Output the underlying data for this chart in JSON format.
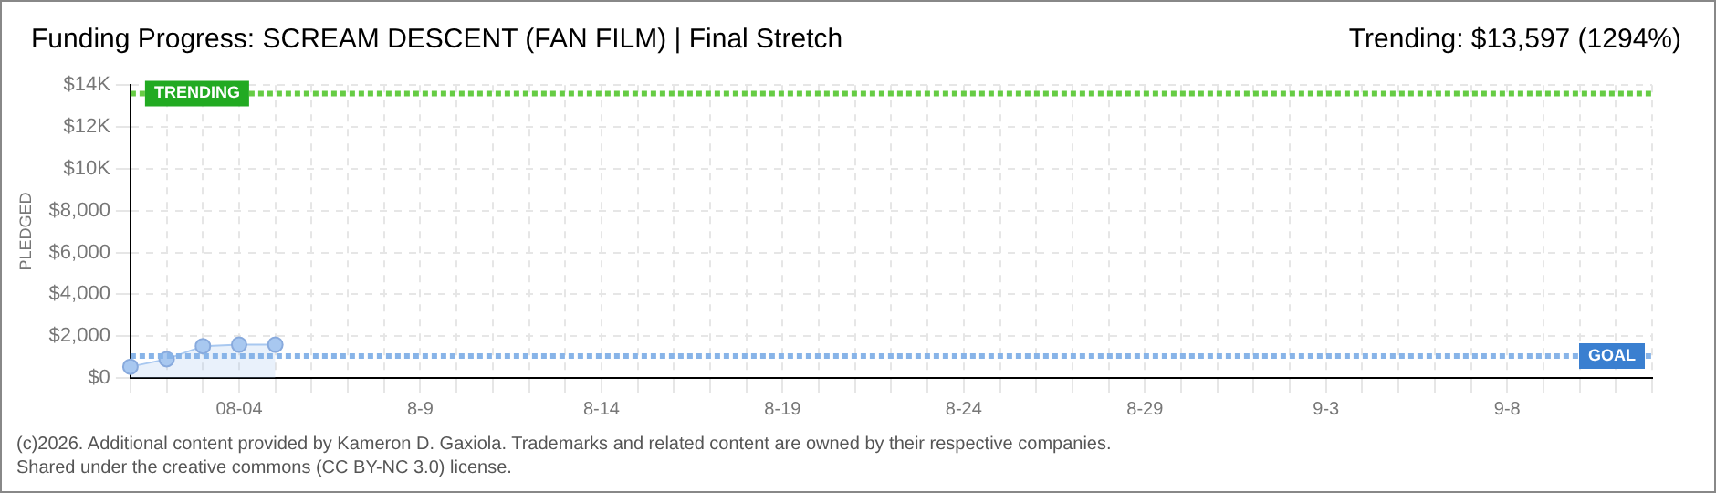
{
  "chart_data": {
    "type": "area",
    "title": "Funding Progress: SCREAM DESCENT (FAN FILM) | Final Stretch",
    "subtitle": "Trending: $13,597 (1294%)",
    "ylabel": "PLEDGED",
    "categories": [
      null,
      null,
      null,
      "08-04",
      null,
      null,
      null,
      null,
      "8-9",
      null,
      null,
      null,
      null,
      "8-14",
      null,
      null,
      null,
      null,
      "8-19",
      null,
      null,
      null,
      null,
      "8-24",
      null,
      null,
      null,
      null,
      "8-29",
      null,
      null,
      null,
      null,
      "9-3",
      null,
      null,
      null,
      null,
      "9-8",
      null,
      null,
      null,
      null
    ],
    "series": [
      {
        "color": "#a8c8f0",
        "values": [
          540,
          900,
          1520,
          1590,
          1590,
          null,
          null,
          null,
          null,
          null,
          null,
          null,
          null,
          null,
          null,
          null,
          null,
          null,
          null,
          null,
          null,
          null,
          null,
          null,
          null,
          null,
          null,
          null,
          null,
          null,
          null,
          null,
          null,
          null,
          null,
          null,
          null,
          null,
          null,
          null,
          null,
          null,
          null
        ]
      }
    ],
    "ylim": [
      0,
      14000
    ],
    "yticks": [
      {
        "value": 0,
        "label": "$0"
      },
      {
        "value": 2000,
        "label": "$2,000"
      },
      {
        "value": 4000,
        "label": "$4,000"
      },
      {
        "value": 6000,
        "label": "$6,000"
      },
      {
        "value": 8000,
        "label": "$8,000"
      },
      {
        "value": 10000,
        "label": "$10K"
      },
      {
        "value": 12000,
        "label": "$12K"
      },
      {
        "value": 14000,
        "label": "$14K"
      }
    ],
    "ref_lines": [
      {
        "axis": "y",
        "value": 13597,
        "label": "TRENDING",
        "color": "#66cc44",
        "line_style": "dotted"
      },
      {
        "axis": "y",
        "value": 1051,
        "label": "GOAL",
        "color": "#88b4e8",
        "line_style": "dotted"
      }
    ],
    "grid": true,
    "marker": "circle",
    "legend": false,
    "annotations": [
      "(c)2026. Additional content provided by Kameron D. Gaxiola. Trademarks and related content are owned by their respective companies.",
      "Shared under the creative commons (CC BY-NC 3.0) license."
    ]
  }
}
